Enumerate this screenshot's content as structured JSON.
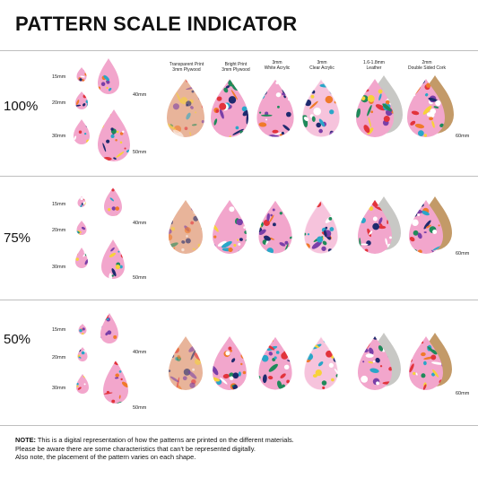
{
  "title": "PATTERN SCALE INDICATOR",
  "materials": [
    {
      "line1": "Transparent Print",
      "line2": "3mm Plywood"
    },
    {
      "line1": "Bright Print",
      "line2": "3mm Plywood"
    },
    {
      "line1": "3mm",
      "line2": "White Acrylic"
    },
    {
      "line1": "3mm",
      "line2": "Clear Acrylic"
    },
    {
      "line1": "1.6-1.8mm",
      "line2": "Leather"
    },
    {
      "line1": "2mm",
      "line2": "Double Sided Cork"
    }
  ],
  "sizes": {
    "s15": "15mm",
    "s20": "20mm",
    "s30": "30mm",
    "s40": "40mm",
    "s50": "50mm",
    "s60": "60mm"
  },
  "scales": [
    {
      "label": "100%"
    },
    {
      "label": "75%"
    },
    {
      "label": "50%"
    }
  ],
  "note": {
    "bold": "NOTE:",
    "line1": " This is a digital representation of how the patterns are printed on the different materials.",
    "line2": "Please be aware there are some characteristics that can't be represented digitally.",
    "line3": "Also note, the placement of the pattern varies on each shape."
  },
  "colors": {
    "pattern_bg": "#f2a6cc",
    "navy": "#1e2a6e",
    "leaf_green": "#1f8a5a",
    "orange": "#f07a2a",
    "yellow": "#f7d23a",
    "red": "#e2343c",
    "leather": "#c8c8c5",
    "cork": "#c39a68"
  }
}
